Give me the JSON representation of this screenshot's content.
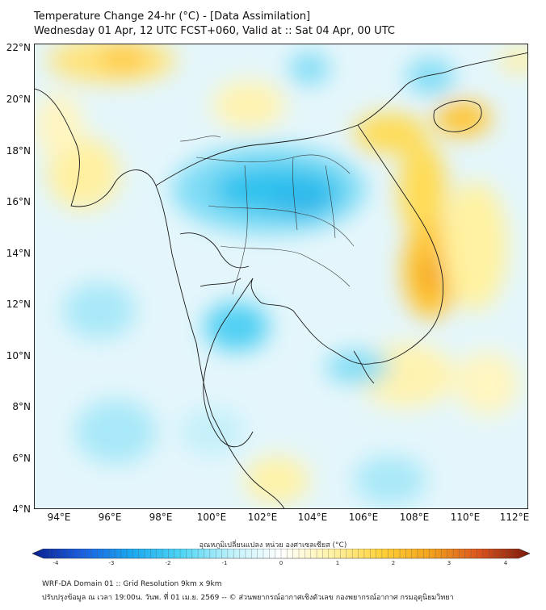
{
  "title": {
    "line1": "Temperature Change 24-hr (°C) - [Data Assimilation]",
    "line2": "Wednesday 01 Apr, 12 UTC FCST+060, Valid at :: Sat 04 Apr, 00 UTC"
  },
  "map": {
    "lat_labels": [
      "22°N",
      "20°N",
      "18°N",
      "16°N",
      "14°N",
      "12°N",
      "10°N",
      "8°N",
      "6°N",
      "4°N"
    ],
    "lon_labels": [
      "94°E",
      "96°E",
      "98°E",
      "100°E",
      "102°E",
      "104°E",
      "106°E",
      "108°E",
      "110°E",
      "112°E"
    ]
  },
  "colorbar": {
    "label": "อุณหภูมิเปลี่ยนแปลง หน่วย องศาเซลเซียส (°C)",
    "ticks": [
      "-4",
      "-3",
      "-2",
      "-1",
      "0",
      "1",
      "2",
      "3",
      "4"
    ],
    "colors": [
      "#0a1f8f",
      "#1a5fe0",
      "#1aa8f0",
      "#4fd6f5",
      "#bff1fb",
      "#ffffff",
      "#fff3a8",
      "#ffd23a",
      "#f3a21c",
      "#d9531e",
      "#7a1a0c"
    ]
  },
  "footer": {
    "line1": "WRF-DA Domain 01 :: Grid Resolution 9km x 9km",
    "line2": "ปรับปรุงข้อมูล ณ เวลา 19:00น. วันพ. ที่ 01 เม.ย. 2569 -- © ส่วนพยากรณ์อากาศเชิงตัวเลข กองพยากรณ์อากาศ กรมอุตุนิยมวิทยา"
  }
}
